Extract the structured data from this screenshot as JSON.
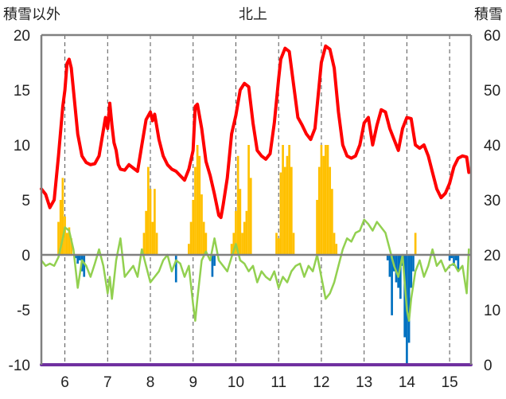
{
  "chart_data": {
    "type": "bar+line",
    "title": "北上",
    "left_axis": {
      "label": "積雪以外",
      "ticks": [
        "20",
        "15",
        "10",
        "5",
        "0",
        "-5",
        "-10"
      ],
      "ylim": [
        -10,
        20
      ]
    },
    "right_axis": {
      "label": "積雪",
      "ticks": [
        "60",
        "50",
        "40",
        "30",
        "20",
        "10",
        "0"
      ],
      "ylim": [
        0,
        60
      ]
    },
    "x_ticks": [
      "6",
      "7",
      "8",
      "9",
      "10",
      "11",
      "12",
      "13",
      "14",
      "15"
    ],
    "xlim": [
      5.45,
      15.5
    ],
    "grid": "vertical-dashed",
    "colors": {
      "red_line": "#ff0000",
      "green_line": "#92d050",
      "orange_bars": "#ffc000",
      "blue_bars": "#0070c0",
      "bottom_line": "#7030a0",
      "axis": "#808080"
    },
    "series": [
      {
        "style": "line",
        "color": "#ff0000",
        "axis": "left",
        "x": [
          5.45,
          5.55,
          5.65,
          5.75,
          5.85,
          5.95,
          6.0,
          6.05,
          6.1,
          6.15,
          6.2,
          6.3,
          6.4,
          6.5,
          6.6,
          6.7,
          6.8,
          6.95,
          7.0,
          7.05,
          7.1,
          7.15,
          7.2,
          7.25,
          7.3,
          7.4,
          7.5,
          7.6,
          7.7,
          7.8,
          7.9,
          8.0,
          8.05,
          8.1,
          8.2,
          8.3,
          8.4,
          8.5,
          8.6,
          8.7,
          8.8,
          8.9,
          9.0,
          9.05,
          9.1,
          9.2,
          9.3,
          9.4,
          9.5,
          9.6,
          9.65,
          9.7,
          9.8,
          9.9,
          10.0,
          10.1,
          10.2,
          10.3,
          10.4,
          10.5,
          10.6,
          10.7,
          10.8,
          10.9,
          11.0,
          11.05,
          11.15,
          11.25,
          11.35,
          11.45,
          11.55,
          11.65,
          11.75,
          11.85,
          12.0,
          12.1,
          12.2,
          12.3,
          12.4,
          12.5,
          12.6,
          12.7,
          12.8,
          12.9,
          13.0,
          13.1,
          13.2,
          13.3,
          13.4,
          13.5,
          13.6,
          13.7,
          13.8,
          13.9,
          14.0,
          14.1,
          14.2,
          14.3,
          14.4,
          14.5,
          14.6,
          14.7,
          14.8,
          14.9,
          15.0,
          15.1,
          15.2,
          15.3,
          15.4,
          15.45
        ],
        "y": [
          6,
          5.5,
          4.3,
          5,
          9,
          13.5,
          15,
          17.4,
          17.8,
          17,
          15,
          11,
          9,
          8.4,
          8.2,
          8.3,
          9,
          12.5,
          11.5,
          13.8,
          11.8,
          10.2,
          9.5,
          8.2,
          7.8,
          7.7,
          8.2,
          7.9,
          7.6,
          10,
          12.3,
          13,
          12.2,
          12.8,
          10.5,
          9,
          8.2,
          7.8,
          7.6,
          7.2,
          6.8,
          7.8,
          9.5,
          13.5,
          13.7,
          11.5,
          8.5,
          7.2,
          5.5,
          3.6,
          3.4,
          4.5,
          7,
          11,
          12.7,
          15,
          15.6,
          15.3,
          12,
          9.5,
          9,
          8.7,
          9.2,
          12,
          16,
          17.8,
          18.8,
          18.5,
          15.5,
          12.5,
          11.8,
          11,
          10.5,
          11.5,
          17.5,
          19,
          18.7,
          17,
          13,
          10,
          9,
          8.8,
          9,
          10,
          12,
          12.5,
          10,
          11.8,
          13.2,
          13,
          11.5,
          10.5,
          9.5,
          11.5,
          12.5,
          12.4,
          10,
          9.7,
          10,
          9,
          7.5,
          6,
          5.2,
          5.6,
          6.5,
          8,
          8.8,
          9,
          8.9,
          7.5
        ],
        "name": ""
      },
      {
        "style": "line",
        "color": "#92d050",
        "axis": "left",
        "x": [
          5.45,
          5.55,
          5.65,
          5.75,
          5.85,
          5.95,
          6.0,
          6.1,
          6.2,
          6.3,
          6.4,
          6.5,
          6.6,
          6.7,
          6.8,
          6.9,
          7.0,
          7.05,
          7.1,
          7.2,
          7.3,
          7.4,
          7.5,
          7.6,
          7.7,
          7.8,
          7.9,
          8.0,
          8.1,
          8.2,
          8.3,
          8.4,
          8.5,
          8.6,
          8.7,
          8.8,
          8.9,
          9.0,
          9.05,
          9.1,
          9.2,
          9.3,
          9.4,
          9.5,
          9.6,
          9.7,
          9.8,
          9.9,
          10.0,
          10.1,
          10.2,
          10.3,
          10.4,
          10.5,
          10.6,
          10.7,
          10.8,
          10.9,
          11.0,
          11.1,
          11.2,
          11.3,
          11.4,
          11.5,
          11.6,
          11.7,
          11.8,
          11.9,
          12.0,
          12.1,
          12.2,
          12.3,
          12.4,
          12.5,
          12.6,
          12.7,
          12.8,
          12.9,
          13.0,
          13.1,
          13.2,
          13.3,
          13.4,
          13.5,
          13.6,
          13.7,
          13.8,
          13.9,
          14.0,
          14.05,
          14.1,
          14.2,
          14.3,
          14.4,
          14.5,
          14.6,
          14.7,
          14.8,
          14.9,
          15.0,
          15.1,
          15.2,
          15.3,
          15.4,
          15.45
        ],
        "y": [
          -0.5,
          -1,
          -0.8,
          -1,
          -0.2,
          1.5,
          2.5,
          2.2,
          0.5,
          -3,
          -0.5,
          -1,
          -2,
          -0.8,
          0.5,
          -1,
          -3.5,
          -2,
          -4,
          -0.5,
          1.5,
          -2,
          -1.5,
          -1,
          -2,
          0.5,
          -1,
          -2.5,
          -2,
          -1.5,
          -0.5,
          0,
          -1.5,
          -0.5,
          -0.8,
          -2,
          -1,
          -4.5,
          -6,
          -4,
          -0.5,
          0.3,
          -0.5,
          1.5,
          -0.5,
          -1,
          -1.5,
          -0.2,
          1,
          -0.5,
          -0.8,
          -1.5,
          -1,
          -2.5,
          -1.5,
          -2,
          -2.3,
          -1.5,
          -3,
          -2,
          -2.5,
          -1.5,
          -1,
          -0.8,
          -2,
          -1,
          -1.5,
          0,
          -2,
          -4,
          -3.5,
          -2.5,
          -1,
          0.5,
          1.5,
          1.2,
          2,
          2.2,
          3.2,
          2.8,
          2.2,
          3,
          2.5,
          2,
          0.5,
          -1,
          -2,
          0,
          -5,
          -6,
          -4,
          -1.5,
          -0.5,
          -2,
          -1,
          0.5,
          -1,
          -0.5,
          -1.5,
          -1,
          -0.8,
          -1.5,
          -1,
          -3.5,
          0.5
        ],
        "name": ""
      },
      {
        "style": "bars",
        "color": "#ffc000",
        "axis": "left",
        "x": [
          5.85,
          5.9,
          5.95,
          6.0,
          6.05,
          6.1,
          6.15,
          7.85,
          7.9,
          7.95,
          8.0,
          8.05,
          8.1,
          8.15,
          8.9,
          8.95,
          9.0,
          9.05,
          9.1,
          9.15,
          9.2,
          9.25,
          9.3,
          9.9,
          9.95,
          10.0,
          10.05,
          10.1,
          10.15,
          10.2,
          10.25,
          10.3,
          10.35,
          10.95,
          11.0,
          11.05,
          11.1,
          11.15,
          11.2,
          11.25,
          11.3,
          11.35,
          11.9,
          11.95,
          12.0,
          12.05,
          12.1,
          12.15,
          12.2,
          12.25,
          12.3,
          12.35,
          14.2
        ],
        "y": [
          3,
          5,
          7,
          3.5,
          2,
          2.5,
          1.5,
          2,
          4,
          8,
          6,
          3,
          6,
          2,
          1,
          3,
          5,
          8,
          10,
          9,
          5.5,
          3,
          2,
          1,
          2,
          4,
          9,
          6,
          2,
          3,
          4,
          10,
          7,
          2,
          1.5,
          7.5,
          10,
          8,
          9,
          10,
          8,
          2,
          5,
          8,
          10,
          9,
          10,
          10,
          8,
          6,
          2,
          1,
          2
        ],
        "name": ""
      },
      {
        "style": "bars",
        "color": "#0070c0",
        "axis": "left",
        "x": [
          6.25,
          6.3,
          6.35,
          6.4,
          6.45,
          8.6,
          9.45,
          9.5,
          13.55,
          13.6,
          13.65,
          13.7,
          13.75,
          13.8,
          13.85,
          13.9,
          13.95,
          14.0,
          14.05,
          14.1,
          14.15,
          15.0,
          15.05,
          15.1,
          15.15,
          15.2
        ],
        "y": [
          -0.3,
          -0.8,
          -0.5,
          -1.5,
          -2,
          -2.5,
          -2,
          -1,
          -0.5,
          -2,
          -5.5,
          -1.5,
          -2.5,
          -3,
          -4,
          -1,
          -7.5,
          -10,
          -8,
          -3,
          -1.5,
          -0.5,
          -0.3,
          -1,
          -0.5,
          -1.5
        ],
        "name": ""
      },
      {
        "style": "line",
        "color": "#7030a0",
        "axis": "right",
        "x": [
          5.45,
          15.5
        ],
        "y": [
          0,
          0
        ],
        "name": ""
      }
    ]
  }
}
